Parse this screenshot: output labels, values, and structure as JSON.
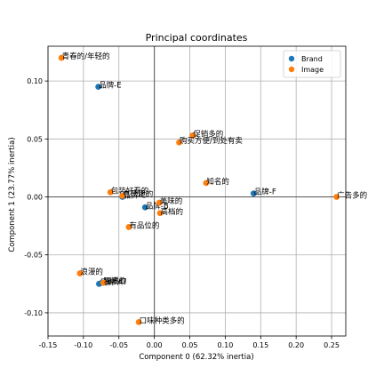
{
  "chart_data": {
    "type": "scatter",
    "title": "Principal coordinates",
    "xlabel": "Component 0 (62.32% inertia)",
    "ylabel": "Component 1 (23.77% inertia)",
    "xlim": [
      -0.15,
      0.27
    ],
    "ylim": [
      -0.12,
      0.13
    ],
    "xticks": [
      -0.15,
      -0.1,
      -0.05,
      0.0,
      0.05,
      0.1,
      0.15,
      0.2,
      0.25
    ],
    "xtick_labels": [
      "-0.15",
      "-0.10",
      "-0.05",
      "0.00",
      "0.05",
      "0.10",
      "0.15",
      "0.20",
      "0.25"
    ],
    "yticks": [
      -0.1,
      -0.05,
      0.0,
      0.05,
      0.1
    ],
    "ytick_labels": [
      "-0.10",
      "-0.05",
      "0.00",
      "0.05",
      "0.10"
    ],
    "grid": true,
    "zero_lines": true,
    "legend_position": "top-right",
    "series": [
      {
        "name": "Brand",
        "color": "#1f77b4",
        "points": [
          {
            "x": -0.079,
            "y": 0.095,
            "label": "品牌-E"
          },
          {
            "x": 0.14,
            "y": 0.003,
            "label": "品牌-F"
          },
          {
            "x": -0.013,
            "y": -0.009,
            "label": "品牌-B"
          },
          {
            "x": -0.078,
            "y": -0.075,
            "label": "品牌-A"
          },
          {
            "x": -0.074,
            "y": -0.074,
            "label": "品牌-D"
          },
          {
            "x": -0.045,
            "y": 0.0,
            "label": "品牌-C"
          }
        ]
      },
      {
        "name": "Image",
        "color": "#ff7f0e",
        "points": [
          {
            "x": -0.131,
            "y": 0.12,
            "label": "青春的/年轻的"
          },
          {
            "x": 0.054,
            "y": 0.053,
            "label": "促销多的"
          },
          {
            "x": 0.035,
            "y": 0.047,
            "label": "购买方便/到处有卖"
          },
          {
            "x": 0.073,
            "y": 0.012,
            "label": "知名的"
          },
          {
            "x": 0.257,
            "y": 0.0,
            "label": "广告多的"
          },
          {
            "x": -0.062,
            "y": 0.004,
            "label": "包装好看的"
          },
          {
            "x": -0.045,
            "y": 0.001,
            "label": "有乐趣的"
          },
          {
            "x": 0.007,
            "y": -0.005,
            "label": "美味的"
          },
          {
            "x": 0.008,
            "y": -0.014,
            "label": "高档的"
          },
          {
            "x": -0.036,
            "y": -0.026,
            "label": "有品位的"
          },
          {
            "x": -0.105,
            "y": -0.066,
            "label": "浪漫的"
          },
          {
            "x": -0.072,
            "y": -0.074,
            "label": "易嚼的"
          },
          {
            "x": -0.022,
            "y": -0.108,
            "label": "口味种类多的"
          }
        ]
      }
    ]
  }
}
